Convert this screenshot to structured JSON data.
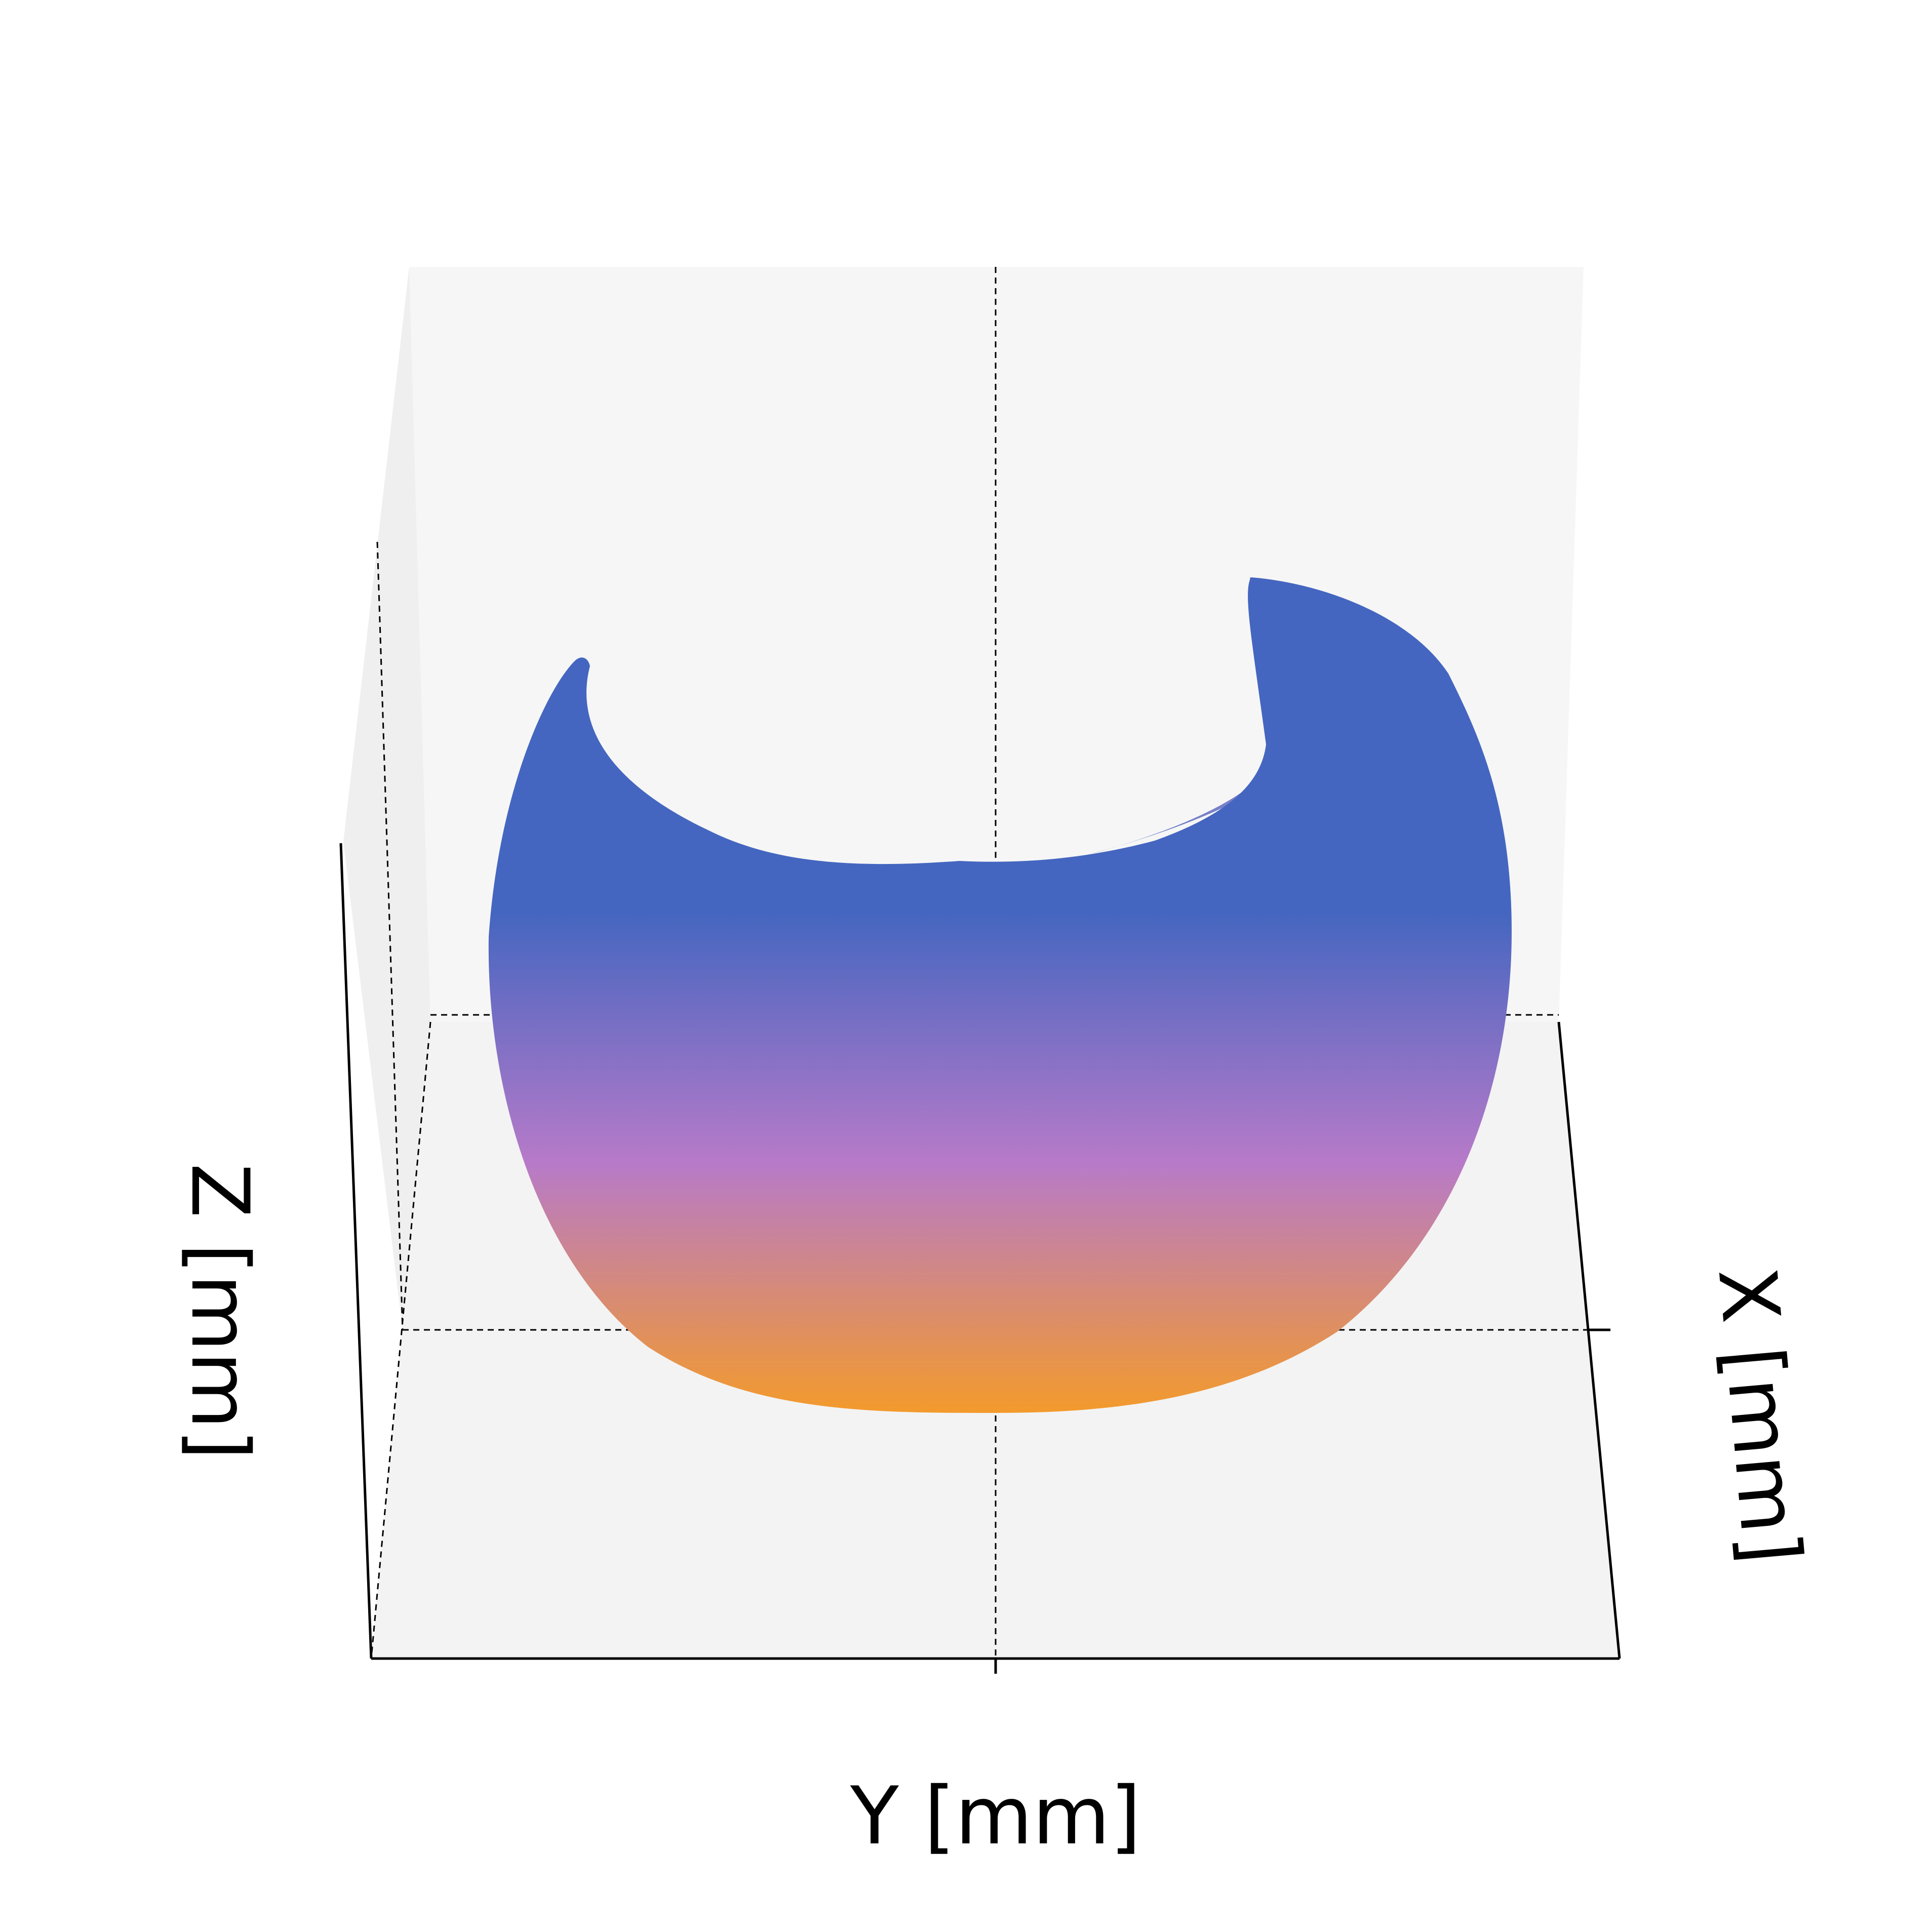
{
  "chart_data": {
    "type": "scatter",
    "subtype": "3d-scatter",
    "title": "",
    "xlabel": "X [mm]",
    "ylabel": "Y [mm]",
    "zlabel": "Z [mm]",
    "tick_labels": [],
    "grid": true,
    "legend": "none",
    "colormap": {
      "low": "#f39a2c",
      "mid": "#b77ac9",
      "high": "#4466c0"
    },
    "shape": "partial-ellipsoid shell (cup-shaped band), open at the top and along the near side"
  },
  "colors": {
    "pane": "#f3f3f3",
    "pane_back": "#f6f6f6",
    "axis_line": "#000000",
    "grid": "#000000"
  }
}
